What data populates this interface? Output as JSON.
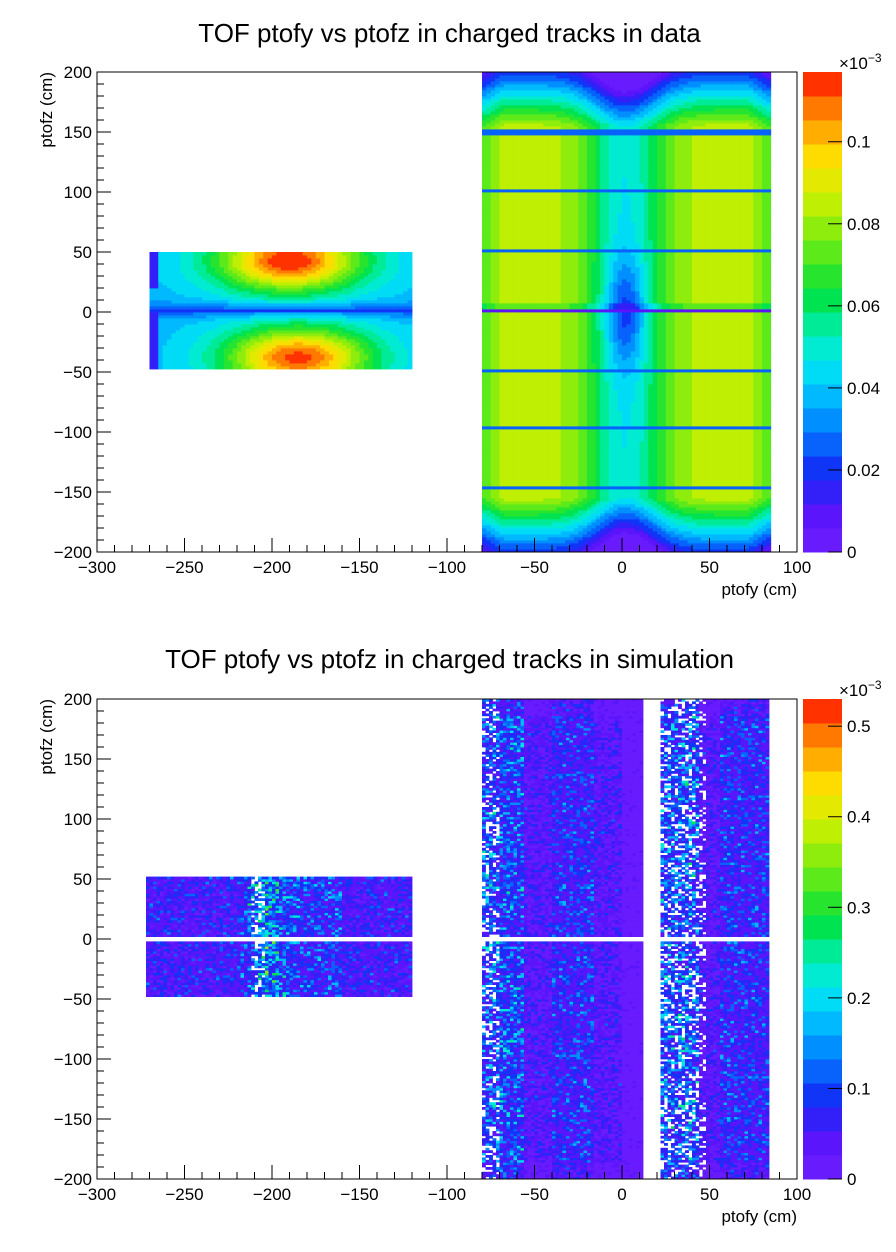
{
  "chart_data": [
    {
      "type": "heatmap",
      "title": "TOF ptofy vs ptofz in charged tracks in data",
      "xlabel": "ptofy (cm)",
      "ylabel": "ptofz (cm)",
      "xlim": [
        -300,
        100
      ],
      "ylim": [
        -200,
        200
      ],
      "x_ticks": [
        "−300",
        "−250",
        "−200",
        "−150",
        "−100",
        "−50",
        "0",
        "50",
        "100"
      ],
      "x_tick_values": [
        -300,
        -250,
        -200,
        -150,
        -100,
        -50,
        0,
        50,
        100
      ],
      "y_ticks": [
        "200",
        "150",
        "100",
        "50",
        "0",
        "−50",
        "−100",
        "−150",
        "−200"
      ],
      "y_tick_values": [
        200,
        150,
        100,
        50,
        0,
        -50,
        -100,
        -150,
        -200
      ],
      "colorbar": {
        "zlim": [
          0,
          0.000117
        ],
        "exponent_label": "×10",
        "exponent": "−3",
        "tick_labels": [
          "0",
          "0.02",
          "0.04",
          "0.06",
          "0.08",
          "0.1"
        ],
        "tick_values": [
          0,
          0.02,
          0.04,
          0.06,
          0.08,
          0.1
        ],
        "label_scale": 0.001
      },
      "pattern": "data",
      "regions": [
        {
          "x": [
            -270,
            -120
          ],
          "y": [
            2,
            51
          ],
          "peak_x": -190,
          "peak_y": 43,
          "peak_value": 0.000115
        },
        {
          "x": [
            -270,
            -120
          ],
          "y": [
            -47,
            2
          ],
          "peak_x": -185,
          "peak_y": -38,
          "peak_value": 0.000113
        },
        {
          "x": [
            -80,
            84
          ],
          "y": [
            -200,
            200
          ],
          "peak_value": 8.48e-05
        }
      ]
    },
    {
      "type": "heatmap",
      "title": "TOF ptofy vs ptofz in charged tracks in simulation",
      "xlabel": "ptofy (cm)",
      "ylabel": "ptofz (cm)",
      "xlim": [
        -300,
        100
      ],
      "ylim": [
        -200,
        200
      ],
      "x_ticks": [
        "−300",
        "−250",
        "−200",
        "−150",
        "−100",
        "−50",
        "0",
        "50",
        "100"
      ],
      "x_tick_values": [
        -300,
        -250,
        -200,
        -150,
        -100,
        -50,
        0,
        50,
        100
      ],
      "y_ticks": [
        "200",
        "150",
        "100",
        "50",
        "0",
        "−50",
        "−100",
        "−150",
        "−200"
      ],
      "y_tick_values": [
        200,
        150,
        100,
        50,
        0,
        -50,
        -100,
        -150,
        -200
      ],
      "colorbar": {
        "zlim": [
          0,
          0.00053
        ],
        "exponent_label": "×10",
        "exponent": "−3",
        "tick_labels": [
          "0",
          "0.1",
          "0.2",
          "0.3",
          "0.4",
          "0.5"
        ],
        "tick_values": [
          0,
          0.1,
          0.2,
          0.3,
          0.4,
          0.5
        ],
        "label_scale": 0.001
      },
      "pattern": "simulation",
      "regions": [
        {
          "x": [
            -272,
            -120
          ],
          "y": [
            -47,
            51
          ],
          "gap_y": 0
        },
        {
          "x": [
            -80,
            84
          ],
          "y": [
            -200,
            200
          ],
          "gap_y": 0,
          "empty_x": [
            12,
            22
          ]
        }
      ]
    }
  ]
}
